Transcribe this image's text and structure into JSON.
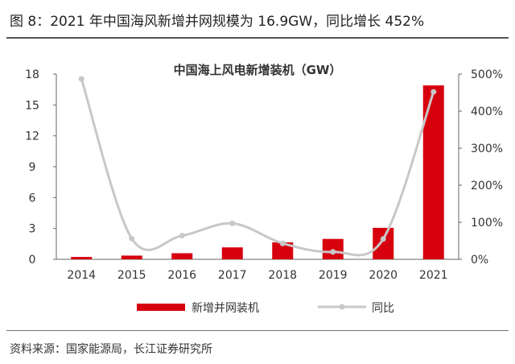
{
  "figure_title": "图 8：2021 年中国海风新增并网规模为 16.9GW，同比增长 452%",
  "source": "资料来源：国家能源局，长江证券研究所",
  "chart_data": {
    "type": "bar",
    "title": "中国海上风电新增装机（GW）",
    "categories": [
      "2014",
      "2015",
      "2016",
      "2017",
      "2018",
      "2019",
      "2020",
      "2021"
    ],
    "series": [
      {
        "name": "新增并网装机",
        "type": "bar",
        "axis": "left",
        "color": "#d7000f",
        "values": [
          0.23,
          0.36,
          0.59,
          1.16,
          1.65,
          1.98,
          3.06,
          16.9
        ]
      },
      {
        "name": "同比",
        "type": "line",
        "axis": "right",
        "color": "#c8c8c8",
        "values": [
          487,
          56,
          64,
          97,
          43,
          20,
          55,
          452
        ]
      }
    ],
    "y_left": {
      "min": 0,
      "max": 18,
      "ticks": [
        "0",
        "3",
        "6",
        "9",
        "12",
        "15",
        "18"
      ]
    },
    "y_right": {
      "min": 0,
      "max": 500,
      "ticks": [
        "0%",
        "100%",
        "200%",
        "300%",
        "400%",
        "500%"
      ]
    },
    "legend_position": "bottom",
    "grid": false
  }
}
